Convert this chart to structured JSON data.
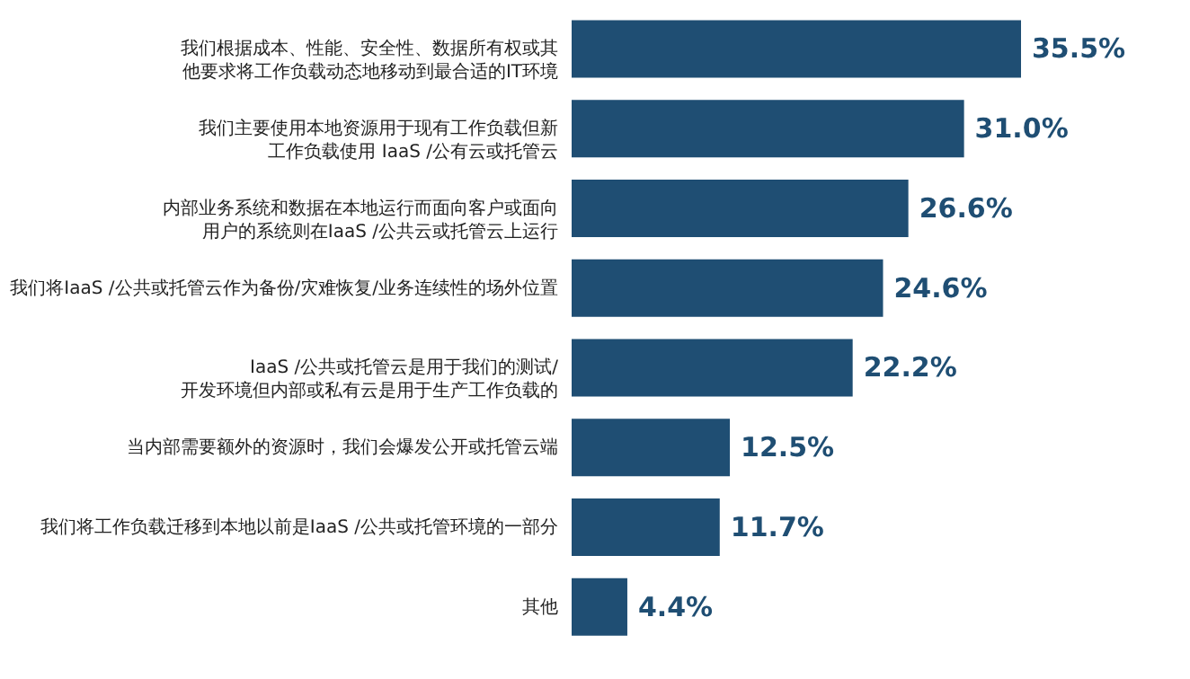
{
  "chart_data": {
    "type": "bar",
    "orientation": "horizontal",
    "categories": [
      "我们根据成本、性能、安全性、数据所有权或其他要求将工作负载动态地移动到最合适的IT环境",
      "我们主要使用本地资源用于现有工作负载但新工作负载使用 IaaS /公有云或托管云",
      "内部业务系统和数据在本地运行而面向客户或面向用户的系统则在IaaS /公共云或托管云上运行",
      "我们将IaaS /公共或托管云作为备份/灾难恢复/业务连续性的场外位置",
      "IaaS /公共或托管云是用于我们的测试/开发环境但内部或私有云是用于生产工作负载的",
      "当内部需要额外的资源时，我们会爆发公开或托管云端",
      "我们将工作负载迁移到本地以前是IaaS /公共或托管环境的一部分",
      "其他"
    ],
    "values": [
      35.5,
      31.0,
      26.6,
      24.6,
      22.2,
      12.5,
      11.7,
      4.4
    ],
    "value_labels": [
      "35.5%",
      "31.0%",
      "26.6%",
      "24.6%",
      "22.2%",
      "12.5%",
      "11.7%",
      "4.4%"
    ],
    "color": "#1f4e73",
    "tick_labels": "y"
  }
}
